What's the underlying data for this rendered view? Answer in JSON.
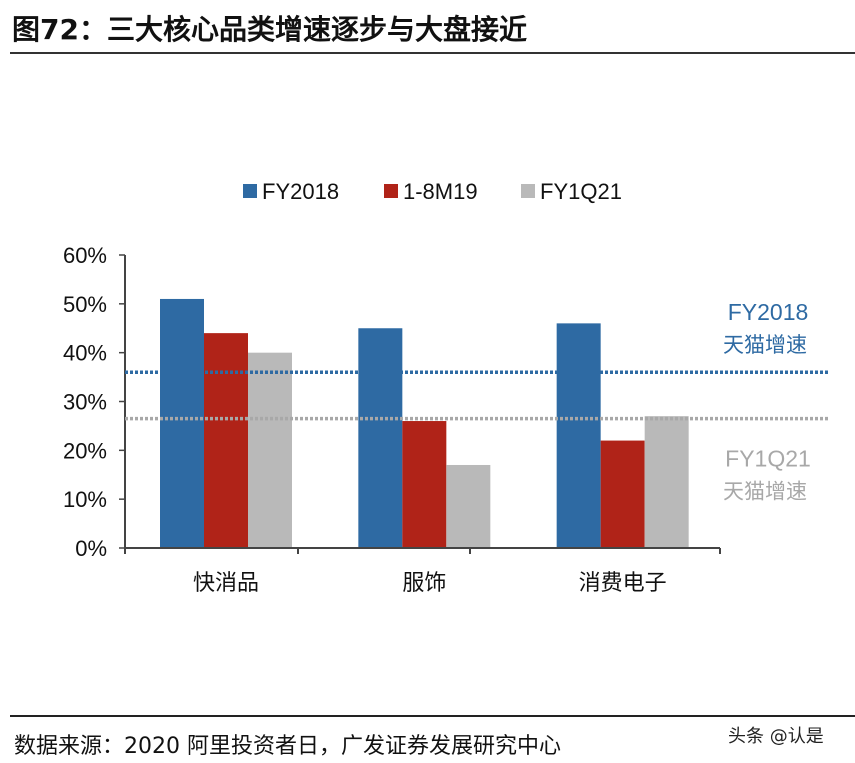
{
  "title": "图72：三大核心品类增速逐步与大盘接近",
  "source": "数据来源：2020 阿里投资者日，广发证券发展研究中心",
  "watermark": "头条 @认是",
  "chart_data": {
    "type": "bar",
    "categories": [
      "快消品",
      "服饰",
      "消费电子"
    ],
    "series": [
      {
        "name": "FY2018",
        "values": [
          51,
          45,
          46
        ],
        "color": "#2e6aa3"
      },
      {
        "name": "1-8M19",
        "values": [
          44,
          26,
          22
        ],
        "color": "#b02318"
      },
      {
        "name": "FY1Q21",
        "values": [
          40,
          17,
          27
        ],
        "color": "#b9b9b9"
      }
    ],
    "ylim": [
      0,
      60
    ],
    "yticks": [
      "0%",
      "10%",
      "20%",
      "30%",
      "40%",
      "50%",
      "60%"
    ],
    "legend": "top",
    "reference_lines": [
      {
        "value": 36,
        "label1": "FY2018",
        "label2": "天猫增速",
        "color": "#2e6aa3"
      },
      {
        "value": 26.5,
        "label1": "FY1Q21",
        "label2": "天猫增速",
        "color": "#a8a8a8"
      }
    ]
  }
}
